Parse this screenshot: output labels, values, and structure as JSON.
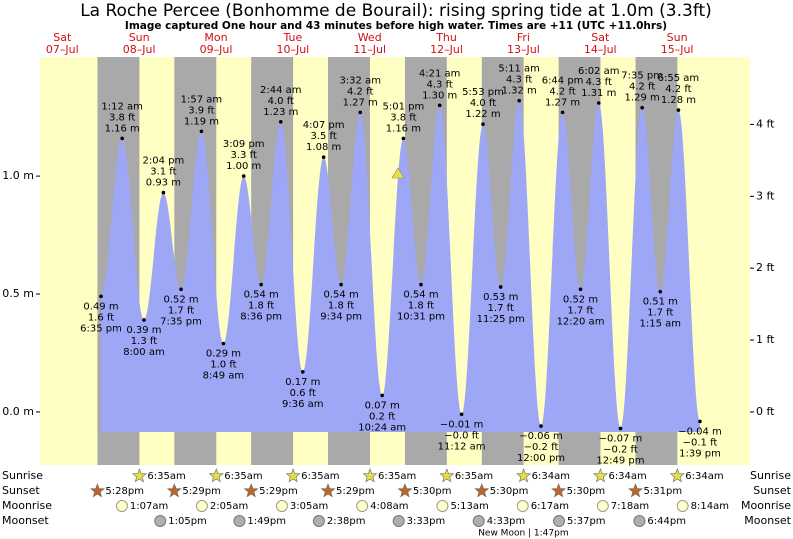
{
  "chart_data": {
    "type": "tide",
    "title": "La Roche Percee (Bonhomme de Bourail): rising  spring tide at 1.0m (3.3ft)",
    "subtitle": "Image captured One hour and 43 minutes before high water. Times are +11 (UTC +11.0hrs)",
    "days": [
      [
        "Sat",
        "07–Jul"
      ],
      [
        "Sun",
        "08–Jul"
      ],
      [
        "Mon",
        "09–Jul"
      ],
      [
        "Tue",
        "10–Jul"
      ],
      [
        "Wed",
        "11–Jul"
      ],
      [
        "Thu",
        "12–Jul"
      ],
      [
        "Fri",
        "13–Jul"
      ],
      [
        "Sat",
        "14–Jul"
      ],
      [
        "Sun",
        "15–Jul"
      ]
    ],
    "ylim": [
      -0.225,
      1.505
    ],
    "yticks": [
      {
        "value": 0,
        "label": "0.0 m"
      },
      {
        "value": 0.5,
        "label": "0.5 m"
      },
      {
        "value": 1,
        "label": "1.0 m"
      }
    ],
    "y2lim": [
      -0.738,
      4.938
    ],
    "y2ticks": [
      {
        "value": 0,
        "label": "0 ft"
      },
      {
        "value": 1,
        "label": "1 ft"
      },
      {
        "value": 2,
        "label": "2 ft"
      },
      {
        "value": 3,
        "label": "3 ft"
      },
      {
        "value": 4,
        "label": "4 ft"
      }
    ],
    "color": "#9ea6f6",
    "tides": {
      "times": [
        "6:35 pm",
        "1:12 am",
        "8:00 am",
        "2:04 pm",
        "7:35 pm",
        "1:57 am",
        "8:49 am",
        "3:09 pm",
        "8:36 pm",
        "2:44 am",
        "9:36 am",
        "4:07 pm",
        "9:34 pm",
        "3:32 am",
        "10:24 am",
        "5:01 pm",
        "10:31 pm",
        "4:21 am",
        "11:12 am",
        "5:53 pm",
        "11:25 pm",
        "5:11 am",
        "12:00 pm",
        "6:44 pm",
        "12:20 am",
        "6:02 am",
        "12:49 pm",
        "7:35 pm",
        "1:15 am",
        "6:55 am",
        "1:39 pm"
      ],
      "values": [
        0.49,
        1.16,
        0.39,
        0.93,
        0.52,
        1.19,
        0.29,
        1.0,
        0.54,
        1.23,
        0.17,
        1.08,
        0.54,
        1.27,
        0.07,
        1.16,
        0.54,
        1.3,
        -0.01,
        1.22,
        0.53,
        1.32,
        -0.06,
        1.27,
        0.52,
        1.31,
        -0.07,
        1.29,
        0.51,
        1.28,
        -0.04
      ],
      "value_labels": [
        "0.49 m",
        "1.16 m",
        "0.39 m",
        "0.93 m",
        "0.52 m",
        "1.19 m",
        "0.29 m",
        "1.00 m",
        "0.54 m",
        "1.23 m",
        "0.17 m",
        "1.08 m",
        "0.54 m",
        "1.27 m",
        "0.07 m",
        "1.16 m",
        "0.54 m",
        "1.30 m",
        "−0.01 m",
        "1.22 m",
        "0.53 m",
        "1.32 m",
        "−0.06 m",
        "1.27 m",
        "0.52 m",
        "1.31 m",
        "−0.07 m",
        "1.29 m",
        "0.51 m",
        "1.28 m",
        "−0.04 m"
      ],
      "feet_labels": [
        "1.6 ft",
        "3.8 ft",
        "1.3 ft",
        "3.1 ft",
        "1.7 ft",
        "3.9 ft",
        "1.0 ft",
        "3.3 ft",
        "1.8 ft",
        "4.0 ft",
        "0.6 ft",
        "3.5 ft",
        "1.8 ft",
        "4.2 ft",
        "0.2 ft",
        "3.8 ft",
        "1.8 ft",
        "4.3 ft",
        "−0.0 ft",
        "4.0 ft",
        "1.7 ft",
        "4.3 ft",
        "−0.2 ft",
        "4.2 ft",
        "1.7 ft",
        "4.3 ft",
        "−0.2 ft",
        "4.2 ft",
        "1.7 ft",
        "4.2 ft",
        "−0.1 ft"
      ]
    },
    "rows": [
      {
        "name": "Sunrise",
        "times": [
          null,
          "6:35am",
          "6:35am",
          "6:35am",
          "6:35am",
          "6:35am",
          "6:34am",
          "6:34am",
          "6:34am"
        ]
      },
      {
        "name": "Sunset",
        "times": [
          "5:28pm",
          "5:29pm",
          "5:29pm",
          "5:29pm",
          "5:30pm",
          "5:30pm",
          "5:30pm",
          "5:31pm",
          null
        ]
      },
      {
        "name": "Moonrise",
        "times": [
          null,
          "1:07am",
          "2:05am",
          "3:05am",
          "4:08am",
          "5:13am",
          "6:17am",
          "7:18am",
          "8:14am"
        ]
      },
      {
        "name": "Moonset",
        "times": [
          null,
          "1:05pm",
          "1:49pm",
          "2:38pm",
          "3:33pm",
          "4:33pm",
          "5:37pm",
          "6:44pm",
          null
        ]
      }
    ],
    "moon_phase": [
      null,
      null,
      null,
      null,
      null,
      null,
      "New Moon | 1:47pm",
      null,
      null
    ]
  }
}
